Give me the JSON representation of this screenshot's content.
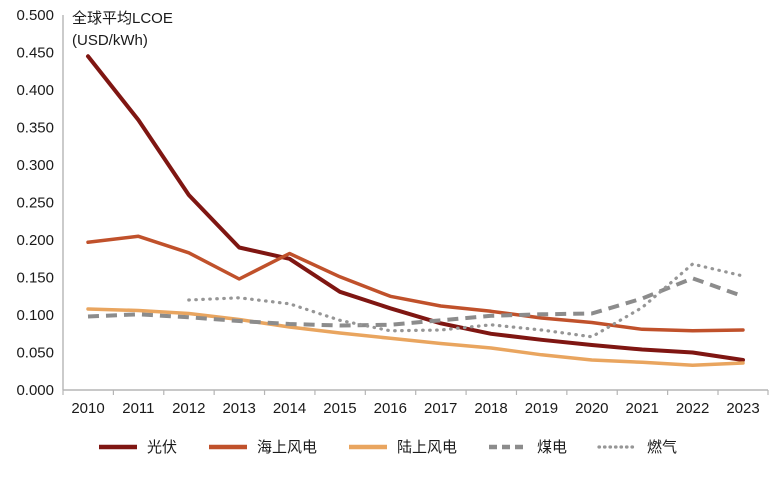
{
  "chart_data": {
    "type": "line",
    "title_line1": "全球平均LCOE",
    "title_line2": "(USD/kWh)",
    "xlabel": "",
    "ylabel": "USD/kWh",
    "grid": false,
    "legend_position": "bottom",
    "categories": [
      "2010",
      "2011",
      "2012",
      "2013",
      "2014",
      "2015",
      "2016",
      "2017",
      "2018",
      "2019",
      "2020",
      "2021",
      "2022",
      "2023"
    ],
    "y_axis": {
      "min": 0.0,
      "max": 0.5,
      "step": 0.05,
      "tick_labels": [
        "0.000",
        "0.050",
        "0.100",
        "0.150",
        "0.200",
        "0.250",
        "0.300",
        "0.350",
        "0.400",
        "0.450",
        "0.500"
      ]
    },
    "series": [
      {
        "key": "pv",
        "name": "光伏",
        "color": "#7f1612",
        "style": "solid",
        "width": 4,
        "values": [
          0.445,
          0.36,
          0.26,
          0.19,
          0.175,
          0.131,
          0.109,
          0.089,
          0.075,
          0.067,
          0.06,
          0.054,
          0.05,
          0.04
        ]
      },
      {
        "key": "offshore-wind",
        "name": "海上风电",
        "color": "#c0512b",
        "style": "solid",
        "width": 3.5,
        "values": [
          0.197,
          0.205,
          0.183,
          0.148,
          0.182,
          0.151,
          0.125,
          0.112,
          0.105,
          0.096,
          0.09,
          0.081,
          0.079,
          0.08
        ]
      },
      {
        "key": "onshore-wind",
        "name": "陆上风电",
        "color": "#e9a55f",
        "style": "solid",
        "width": 3.5,
        "values": [
          0.108,
          0.106,
          0.102,
          0.094,
          0.084,
          0.076,
          0.069,
          0.062,
          0.056,
          0.047,
          0.04,
          0.037,
          0.033,
          0.036
        ]
      },
      {
        "key": "coal",
        "name": "煤电",
        "color": "#8c8c8c",
        "style": "dashed",
        "width": 4,
        "values": [
          0.098,
          0.101,
          0.097,
          0.092,
          0.088,
          0.086,
          0.087,
          0.093,
          0.099,
          0.101,
          0.102,
          0.122,
          0.149,
          0.125
        ]
      },
      {
        "key": "gas",
        "name": "燃气",
        "color": "#969696",
        "style": "dotted",
        "width": 3.2,
        "values": [
          null,
          null,
          0.12,
          0.123,
          0.115,
          0.093,
          0.079,
          0.08,
          0.087,
          0.08,
          0.071,
          0.11,
          0.168,
          0.152
        ]
      }
    ]
  }
}
